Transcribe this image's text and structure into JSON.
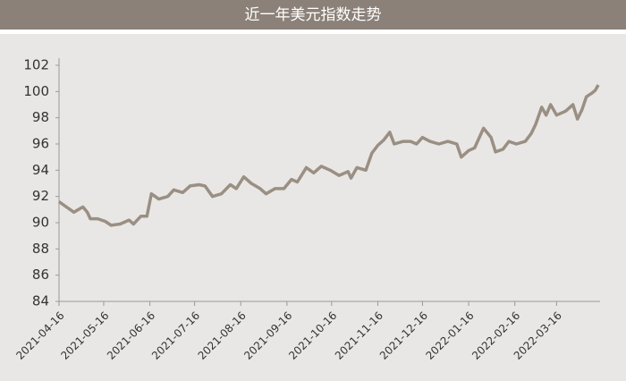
{
  "chart_data": {
    "type": "line",
    "title": "近一年美元指数走势",
    "x": [
      "2021-04-16",
      "2021-04-21",
      "2021-04-26",
      "2021-04-29",
      "2021-05-02",
      "2021-05-05",
      "2021-05-07",
      "2021-05-12",
      "2021-05-17",
      "2021-05-21",
      "2021-05-27",
      "2021-06-02",
      "2021-06-05",
      "2021-06-10",
      "2021-06-14",
      "2021-06-17",
      "2021-06-22",
      "2021-06-28",
      "2021-07-02",
      "2021-07-08",
      "2021-07-13",
      "2021-07-19",
      "2021-07-23",
      "2021-07-28",
      "2021-08-03",
      "2021-08-09",
      "2021-08-13",
      "2021-08-18",
      "2021-08-23",
      "2021-08-29",
      "2021-09-02",
      "2021-09-08",
      "2021-09-14",
      "2021-09-19",
      "2021-09-23",
      "2021-09-29",
      "2021-10-04",
      "2021-10-09",
      "2021-10-15",
      "2021-10-21",
      "2021-10-27",
      "2021-10-29",
      "2021-11-02",
      "2021-11-08",
      "2021-11-12",
      "2021-11-16",
      "2021-11-20",
      "2021-11-24",
      "2021-11-27",
      "2021-12-03",
      "2021-12-08",
      "2021-12-12",
      "2021-12-16",
      "2021-12-21",
      "2021-12-27",
      "2022-01-02",
      "2022-01-08",
      "2022-01-11",
      "2022-01-16",
      "2022-01-20",
      "2022-01-26",
      "2022-01-31",
      "2022-02-03",
      "2022-02-08",
      "2022-02-12",
      "2022-02-17",
      "2022-02-23",
      "2022-02-27",
      "2022-03-02",
      "2022-03-06",
      "2022-03-09",
      "2022-03-12",
      "2022-03-16",
      "2022-03-22",
      "2022-03-27",
      "2022-03-30",
      "2022-04-02",
      "2022-04-05",
      "2022-04-09",
      "2022-04-11",
      "2022-04-13"
    ],
    "series": [
      {
        "color": "#9a8f83",
        "values": [
          91.6,
          91.2,
          90.8,
          91.0,
          91.2,
          90.8,
          90.3,
          90.3,
          90.1,
          89.8,
          89.9,
          90.2,
          89.9,
          90.5,
          90.5,
          92.2,
          91.8,
          92.0,
          92.5,
          92.3,
          92.8,
          92.9,
          92.8,
          92.0,
          92.2,
          92.9,
          92.6,
          93.5,
          93.0,
          92.6,
          92.2,
          92.6,
          92.6,
          93.3,
          93.1,
          94.2,
          93.8,
          94.3,
          94.0,
          93.6,
          93.9,
          93.4,
          94.2,
          94.0,
          95.3,
          95.9,
          96.3,
          96.9,
          96.0,
          96.2,
          96.2,
          96.0,
          96.5,
          96.2,
          96.0,
          96.2,
          96.0,
          95.0,
          95.5,
          95.7,
          97.2,
          96.5,
          95.4,
          95.6,
          96.2,
          96.0,
          96.2,
          96.8,
          97.5,
          98.8,
          98.2,
          99.0,
          98.2,
          98.5,
          99.0,
          97.9,
          98.6,
          99.6,
          99.9,
          100.1,
          100.5
        ]
      }
    ],
    "xlim": [
      "2021-04-16",
      "2022-04-13"
    ],
    "xticks": [
      "2021-04-16",
      "2021-05-16",
      "2021-06-16",
      "2021-07-16",
      "2021-08-16",
      "2021-09-16",
      "2021-10-16",
      "2021-11-16",
      "2021-12-16",
      "2022-01-16",
      "2022-02-16",
      "2022-03-16"
    ],
    "ylim": [
      84,
      102
    ],
    "yticks": [
      84,
      86,
      88,
      90,
      92,
      94,
      96,
      98,
      100,
      102
    ]
  }
}
